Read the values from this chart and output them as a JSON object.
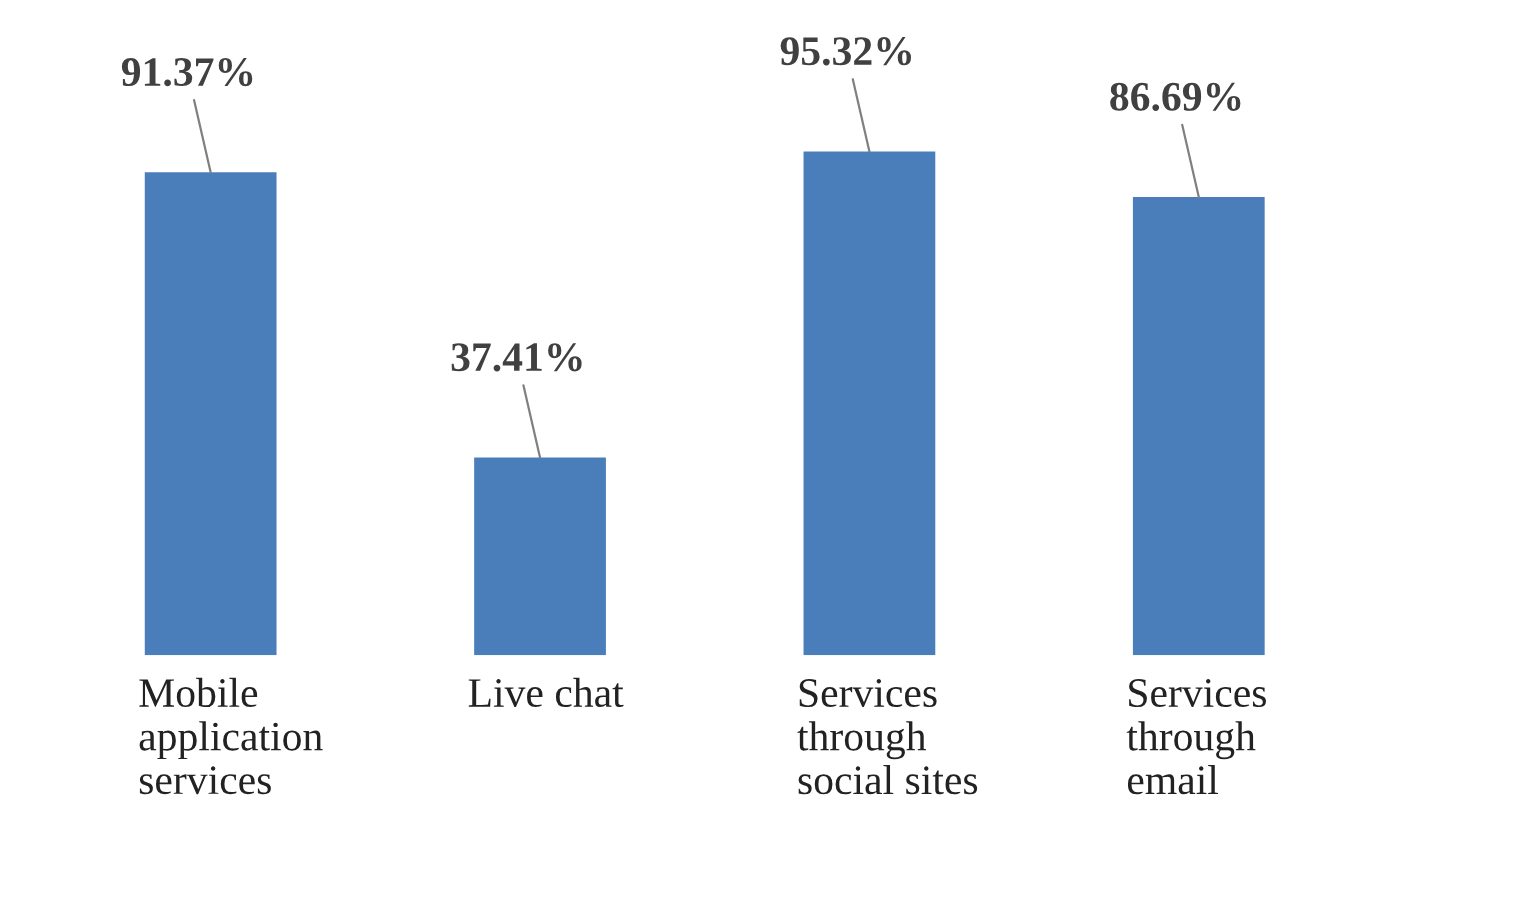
{
  "chart_data": {
    "type": "bar",
    "categories": [
      "Mobile\napplication\nservices",
      "Live chat",
      "Services\nthrough\nsocial sites",
      "Services\nthrough\nemail"
    ],
    "values": [
      91.37,
      37.41,
      95.32,
      86.69
    ],
    "value_labels": [
      "91.37%",
      "37.41%",
      "95.32%",
      "86.69%"
    ],
    "color": "#4a7ebb"
  }
}
